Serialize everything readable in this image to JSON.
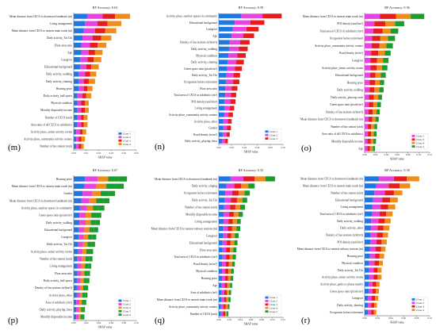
{
  "colors": {
    "Class 1": "#1f77e4",
    "Class 2": "#e842e0",
    "Class 3": "#e81c1c",
    "Class 4": "#f08c1a",
    "Class 5": "#1c9c2c",
    "Class 6": "#1c9c2c"
  },
  "chart_data": [
    {
      "type": "bar",
      "title": "RF Accuracy: 0.63",
      "panel_label": "(m)",
      "xlabel": "SHAP value",
      "xticks": [
        "0.00",
        "0.01",
        "0.02",
        "0.03",
        "0.04",
        "0.05"
      ],
      "xlim": [
        0,
        0.05
      ],
      "legend": [
        "Class 1",
        "Class 2",
        "Class 3",
        "Class 4"
      ],
      "legend_position": "bottom-right",
      "categories": [
        "Mean distance from CECS to downtown landmark (m)",
        "Living arrangement",
        "Mean distance from CECS to nearest main roads (m)",
        "Daily activity_Tai Chi",
        "Floor area ratio",
        "Age",
        "Caregiver",
        "Educational background",
        "Daily activity_walking",
        "Daily activity_chatting",
        "Housing price",
        "Daily activity_ball sports",
        "Physical condition",
        "Monthly disposable income",
        "Number of CECS (unit)",
        "Area ratio of all CECS to subdistrict",
        "Activity place_senior activity rooms",
        "Activity place_community activity centers",
        "Number of bus station (unit)"
      ],
      "series": [
        {
          "name": "Class 1",
          "values": [
            0.011,
            0.009,
            0.008,
            0.007,
            0.006,
            0.006,
            0.005,
            0.005,
            0.004,
            0.004,
            0.004,
            0.003,
            0.003,
            0.003,
            0.003,
            0.003,
            0.002,
            0.002,
            0.002
          ]
        },
        {
          "name": "Class 2",
          "values": [
            0.012,
            0.01,
            0.009,
            0.008,
            0.007,
            0.006,
            0.006,
            0.005,
            0.005,
            0.004,
            0.004,
            0.004,
            0.003,
            0.003,
            0.003,
            0.003,
            0.003,
            0.002,
            0.002
          ]
        },
        {
          "name": "Class 3",
          "values": [
            0.01,
            0.008,
            0.008,
            0.007,
            0.006,
            0.005,
            0.005,
            0.004,
            0.004,
            0.004,
            0.003,
            0.003,
            0.003,
            0.003,
            0.002,
            0.002,
            0.002,
            0.002,
            0.002
          ]
        },
        {
          "name": "Class 4",
          "values": [
            0.012,
            0.011,
            0.009,
            0.008,
            0.007,
            0.006,
            0.006,
            0.006,
            0.005,
            0.005,
            0.004,
            0.004,
            0.003,
            0.003,
            0.003,
            0.003,
            0.003,
            0.003,
            0.002
          ]
        }
      ]
    },
    {
      "type": "bar",
      "title": "RF Accuracy: 0.59",
      "panel_label": "(n)",
      "xlabel": "SHAP value",
      "xticks": [
        "0.00",
        "0.02",
        "0.04",
        "0.06",
        "0.08",
        "0.10"
      ],
      "xlim": [
        0,
        0.1
      ],
      "legend": [
        "Class 1",
        "Class 2",
        "Class 3"
      ],
      "legend_position": "bottom-right",
      "categories": [
        "Activity place_outdoor spaces in community",
        "Educational background",
        "Caregiver",
        "Age",
        "Density of bus stations (n/(km²))",
        "Daily activity_walking",
        "Physical condition",
        "Daily activity_chatting",
        "Green space ratio (pixels/m²)",
        "Daily activity_Tai Chi",
        "Occupation before retirement",
        "Floor area ratio",
        "Total area of CECS in subdistrict (m²)",
        "POI density (unit/km²)",
        "Living arrangement",
        "Activity place_community activity centers",
        "Activity place_other",
        "Gender",
        "Road density (m/m²)",
        "Daily activity_playing chess"
      ],
      "series": [
        {
          "name": "Class 1",
          "values": [
            0.035,
            0.025,
            0.022,
            0.02,
            0.017,
            0.016,
            0.015,
            0.014,
            0.013,
            0.012,
            0.011,
            0.01,
            0.01,
            0.009,
            0.009,
            0.008,
            0.007,
            0.007,
            0.006,
            0.005
          ]
        },
        {
          "name": "Class 2",
          "values": [
            0.033,
            0.024,
            0.021,
            0.018,
            0.016,
            0.015,
            0.014,
            0.013,
            0.012,
            0.011,
            0.011,
            0.01,
            0.009,
            0.009,
            0.008,
            0.007,
            0.007,
            0.006,
            0.006,
            0.005
          ]
        },
        {
          "name": "Class 3",
          "values": [
            0.03,
            0.022,
            0.019,
            0.017,
            0.015,
            0.014,
            0.013,
            0.012,
            0.011,
            0.01,
            0.01,
            0.009,
            0.008,
            0.008,
            0.007,
            0.007,
            0.006,
            0.006,
            0.005,
            0.004
          ]
        }
      ]
    },
    {
      "type": "bar",
      "title": "RF Accuracy: 0.56",
      "panel_label": "(o)",
      "xlabel": "SHAP value",
      "xticks": [
        "0.00",
        "0.02",
        "0.04",
        "0.06",
        "0.08",
        "0.10",
        "0.12"
      ],
      "xlim": [
        0,
        0.12
      ],
      "legend": [
        "Class 2",
        "Class 3",
        "Class 4",
        "Class 5"
      ],
      "legend_position": "bottom-right",
      "categories": [
        "Mean distance from CECS to nearest main roads (m)",
        "POI density (unit/km²)",
        "Total area of CECS in subdistrict (m²)",
        "Occupation before retirement",
        "Activity place_community activity centers",
        "Road density (m/m²)",
        "Caregiver",
        "Activity place_senior activity rooms",
        "Educational background",
        "Housing price",
        "Daily activity_walking",
        "Daily activity_playing cards",
        "Green space ratio (pixels/m²)",
        "Density of bus stations (n/(km²))",
        "Mean distance from CECS to downtown landmark (m)",
        "Number of bus station (unit)",
        "Area ratio of all CECS to subdistrict",
        "Monthly disposable income",
        "Age"
      ],
      "series": [
        {
          "name": "Class 2",
          "values": [
            0.028,
            0.018,
            0.016,
            0.014,
            0.013,
            0.012,
            0.011,
            0.011,
            0.01,
            0.009,
            0.009,
            0.008,
            0.008,
            0.007,
            0.007,
            0.006,
            0.006,
            0.005,
            0.005
          ]
        },
        {
          "name": "Class 3",
          "values": [
            0.03,
            0.02,
            0.017,
            0.015,
            0.014,
            0.013,
            0.012,
            0.011,
            0.01,
            0.01,
            0.009,
            0.009,
            0.008,
            0.008,
            0.007,
            0.006,
            0.006,
            0.006,
            0.005
          ]
        },
        {
          "name": "Class 4",
          "values": [
            0.027,
            0.018,
            0.015,
            0.014,
            0.013,
            0.012,
            0.011,
            0.01,
            0.01,
            0.009,
            0.009,
            0.008,
            0.007,
            0.007,
            0.006,
            0.006,
            0.005,
            0.005,
            0.005
          ]
        },
        {
          "name": "Class 5",
          "values": [
            0.025,
            0.017,
            0.014,
            0.013,
            0.012,
            0.011,
            0.01,
            0.01,
            0.009,
            0.008,
            0.008,
            0.007,
            0.007,
            0.006,
            0.006,
            0.005,
            0.005,
            0.005,
            0.004
          ]
        }
      ]
    },
    {
      "type": "bar",
      "title": "RF Accuracy: 0.67",
      "panel_label": "(p)",
      "xlabel": "SHAP value",
      "xticks": [
        "0.00",
        "0.02",
        "0.04",
        "0.06",
        "0.08",
        "0.10"
      ],
      "xlim": [
        0,
        0.1
      ],
      "legend": [
        "Class 1",
        "Class 2",
        "Class 4",
        "Class 5",
        "Class 6"
      ],
      "legend_position": "bottom-right",
      "categories": [
        "Housing price",
        "Mean distance from CECS to nearest main roads (m)",
        "Gender",
        "Mean distance from CECS to downtown landmark (m)",
        "Activity place_outdoor spaces in community",
        "Green space ratio (pixels/m²)",
        "Daily activity_walking",
        "Educational background",
        "Caregiver",
        "Daily activity_Tai Chi",
        "Activity place_senior activity rooms",
        "Number of bus station (unit)",
        "Living arrangement",
        "Floor area ratio",
        "Daily activity_ball sports",
        "Density of bus stations (n/(km²))",
        "Activity place_other",
        "Area of subdistrict (m²)",
        "Daily activity_playing chess",
        "Monthly disposable income"
      ],
      "series": [
        {
          "name": "Class 1",
          "values": [
            0.018,
            0.017,
            0.014,
            0.012,
            0.01,
            0.009,
            0.009,
            0.008,
            0.008,
            0.007,
            0.007,
            0.006,
            0.006,
            0.006,
            0.005,
            0.005,
            0.005,
            0.004,
            0.004,
            0.004
          ]
        },
        {
          "name": "Class 2",
          "values": [
            0.02,
            0.019,
            0.016,
            0.013,
            0.011,
            0.01,
            0.01,
            0.009,
            0.008,
            0.008,
            0.007,
            0.007,
            0.006,
            0.006,
            0.006,
            0.005,
            0.005,
            0.005,
            0.004,
            0.004
          ]
        },
        {
          "name": "Class 4",
          "values": [
            0.017,
            0.016,
            0.013,
            0.011,
            0.01,
            0.009,
            0.008,
            0.008,
            0.007,
            0.007,
            0.006,
            0.006,
            0.006,
            0.005,
            0.005,
            0.005,
            0.004,
            0.004,
            0.004,
            0.003
          ]
        },
        {
          "name": "Class 5",
          "values": [
            0.016,
            0.015,
            0.012,
            0.011,
            0.009,
            0.008,
            0.008,
            0.007,
            0.007,
            0.006,
            0.006,
            0.006,
            0.005,
            0.005,
            0.005,
            0.004,
            0.004,
            0.004,
            0.003,
            0.003
          ]
        },
        {
          "name": "Class 6",
          "values": [
            0.014,
            0.013,
            0.011,
            0.01,
            0.009,
            0.008,
            0.007,
            0.007,
            0.006,
            0.006,
            0.005,
            0.005,
            0.005,
            0.004,
            0.004,
            0.004,
            0.004,
            0.003,
            0.003,
            0.003
          ]
        }
      ]
    },
    {
      "type": "bar",
      "title": "RF Accuracy: 0.53",
      "panel_label": "(q)",
      "xlabel": "SHAP value",
      "xticks": [
        "0.00",
        "0.02",
        "0.04",
        "0.06",
        "0.08",
        "0.10",
        "0.12"
      ],
      "xlim": [
        0,
        0.12
      ],
      "legend": [
        "Class 1",
        "Class 2",
        "Class 3",
        "Class 4",
        "Class 5"
      ],
      "legend_position": "bottom-right",
      "categories": [
        "Mean distance from CECS to downtown landmark (m)",
        "Daily activity_singing",
        "Occupation before retirement",
        "Daily activity_Tai Chi",
        "Number of bus station (unit)",
        "Monthly disposable income",
        "Living arrangement",
        "Mean distance from CECS to nearest subway stations (m)",
        "Caregiver",
        "Educational background",
        "Floor area ratio",
        "Total area of CECS in subdistrict (m²)",
        "Road density (m/m²)",
        "Physical condition",
        "Housing price",
        "Age",
        "Area of subdistrict (m²)",
        "Mean distance from CECS to nearest main roads (m)",
        "Activity place_community activity centers",
        "Number of CECS (unit)"
      ],
      "series": [
        {
          "name": "Class 1",
          "values": [
            0.022,
            0.014,
            0.012,
            0.011,
            0.01,
            0.009,
            0.009,
            0.008,
            0.008,
            0.007,
            0.007,
            0.007,
            0.006,
            0.006,
            0.006,
            0.005,
            0.005,
            0.005,
            0.004,
            0.004
          ]
        },
        {
          "name": "Class 2",
          "values": [
            0.024,
            0.015,
            0.013,
            0.012,
            0.011,
            0.01,
            0.009,
            0.009,
            0.008,
            0.008,
            0.007,
            0.007,
            0.007,
            0.006,
            0.006,
            0.006,
            0.005,
            0.005,
            0.005,
            0.004
          ]
        },
        {
          "name": "Class 3",
          "values": [
            0.021,
            0.013,
            0.012,
            0.011,
            0.01,
            0.009,
            0.008,
            0.008,
            0.007,
            0.007,
            0.007,
            0.006,
            0.006,
            0.006,
            0.005,
            0.005,
            0.005,
            0.004,
            0.004,
            0.004
          ]
        },
        {
          "name": "Class 4",
          "values": [
            0.02,
            0.013,
            0.011,
            0.01,
            0.009,
            0.009,
            0.008,
            0.008,
            0.007,
            0.007,
            0.006,
            0.006,
            0.006,
            0.005,
            0.005,
            0.005,
            0.004,
            0.004,
            0.004,
            0.003
          ]
        },
        {
          "name": "Class 5",
          "values": [
            0.018,
            0.012,
            0.01,
            0.009,
            0.009,
            0.008,
            0.007,
            0.007,
            0.007,
            0.006,
            0.006,
            0.006,
            0.005,
            0.005,
            0.005,
            0.004,
            0.004,
            0.004,
            0.003,
            0.003
          ]
        }
      ]
    },
    {
      "type": "bar",
      "title": "RF Accuracy: 0.58",
      "panel_label": "(r)",
      "xlabel": "SHAP value",
      "xticks": [
        "0.00",
        "0.02",
        "0.04",
        "0.06",
        "0.08",
        "0.10"
      ],
      "xlim": [
        0,
        0.1
      ],
      "legend": [
        "Class 1",
        "Class 2",
        "Class 3",
        "Class 4"
      ],
      "legend_position": "bottom-right",
      "categories": [
        "Mean distance from CECS to downtown landmark (m)",
        "Mean distance from CECS to nearest main roads (m)",
        "Number of bus station (unit)",
        "Educational background",
        "Living arrangement",
        "Total area of CECS in subdistrict (m²)",
        "Daily activity_walking",
        "Daily activity_other",
        "Density of bus stations (n/(km²))",
        "POI density (unit/km²)",
        "Mean distance from CECS to nearest subway stations (m)",
        "Housing price",
        "Physical condition",
        "Daily activity_Tai Chi",
        "Activity place_senior activity rooms",
        "Activity place_parks or plazas nearby",
        "Green space ratio (pixels/m²)",
        "Caregiver",
        "Daily activity_dancing",
        "Occupation before retirement"
      ],
      "series": [
        {
          "name": "Class 1",
          "values": [
            0.022,
            0.018,
            0.015,
            0.013,
            0.012,
            0.011,
            0.01,
            0.01,
            0.009,
            0.009,
            0.008,
            0.008,
            0.007,
            0.007,
            0.007,
            0.006,
            0.006,
            0.005,
            0.005,
            0.005
          ]
        },
        {
          "name": "Class 2",
          "values": [
            0.023,
            0.019,
            0.016,
            0.014,
            0.013,
            0.012,
            0.011,
            0.01,
            0.01,
            0.009,
            0.009,
            0.008,
            0.008,
            0.007,
            0.007,
            0.006,
            0.006,
            0.006,
            0.005,
            0.005
          ]
        },
        {
          "name": "Class 3",
          "values": [
            0.02,
            0.017,
            0.014,
            0.012,
            0.011,
            0.01,
            0.01,
            0.009,
            0.009,
            0.008,
            0.008,
            0.007,
            0.007,
            0.006,
            0.006,
            0.006,
            0.005,
            0.005,
            0.005,
            0.004
          ]
        },
        {
          "name": "Class 4",
          "values": [
            0.019,
            0.016,
            0.013,
            0.012,
            0.011,
            0.01,
            0.009,
            0.009,
            0.008,
            0.008,
            0.007,
            0.007,
            0.006,
            0.006,
            0.006,
            0.005,
            0.005,
            0.005,
            0.004,
            0.004
          ]
        }
      ]
    }
  ]
}
